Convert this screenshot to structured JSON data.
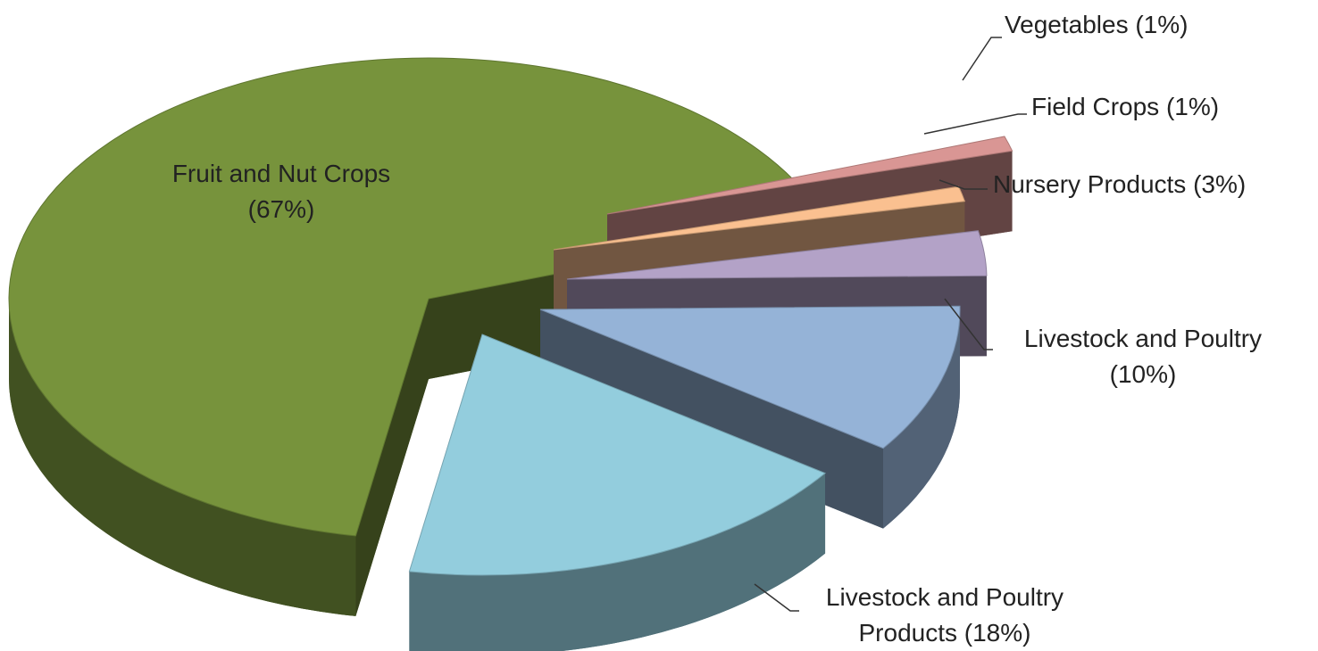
{
  "chart_data": {
    "type": "pie",
    "categories": [
      "Fruit and Nut Crops",
      "Vegetables",
      "Field Crops",
      "Nursery Products",
      "Livestock and Poultry",
      "Livestock and Poultry Products"
    ],
    "values": [
      67,
      1,
      1,
      3,
      10,
      18
    ],
    "value_labels": [
      "(67%)",
      "(1%)",
      "(1%)",
      "(3%)",
      "(10%)",
      "(18%)"
    ],
    "colors": [
      "#77933c",
      "#d99694",
      "#fac090",
      "#b3a2c7",
      "#95b3d7",
      "#93cddd"
    ]
  }
}
